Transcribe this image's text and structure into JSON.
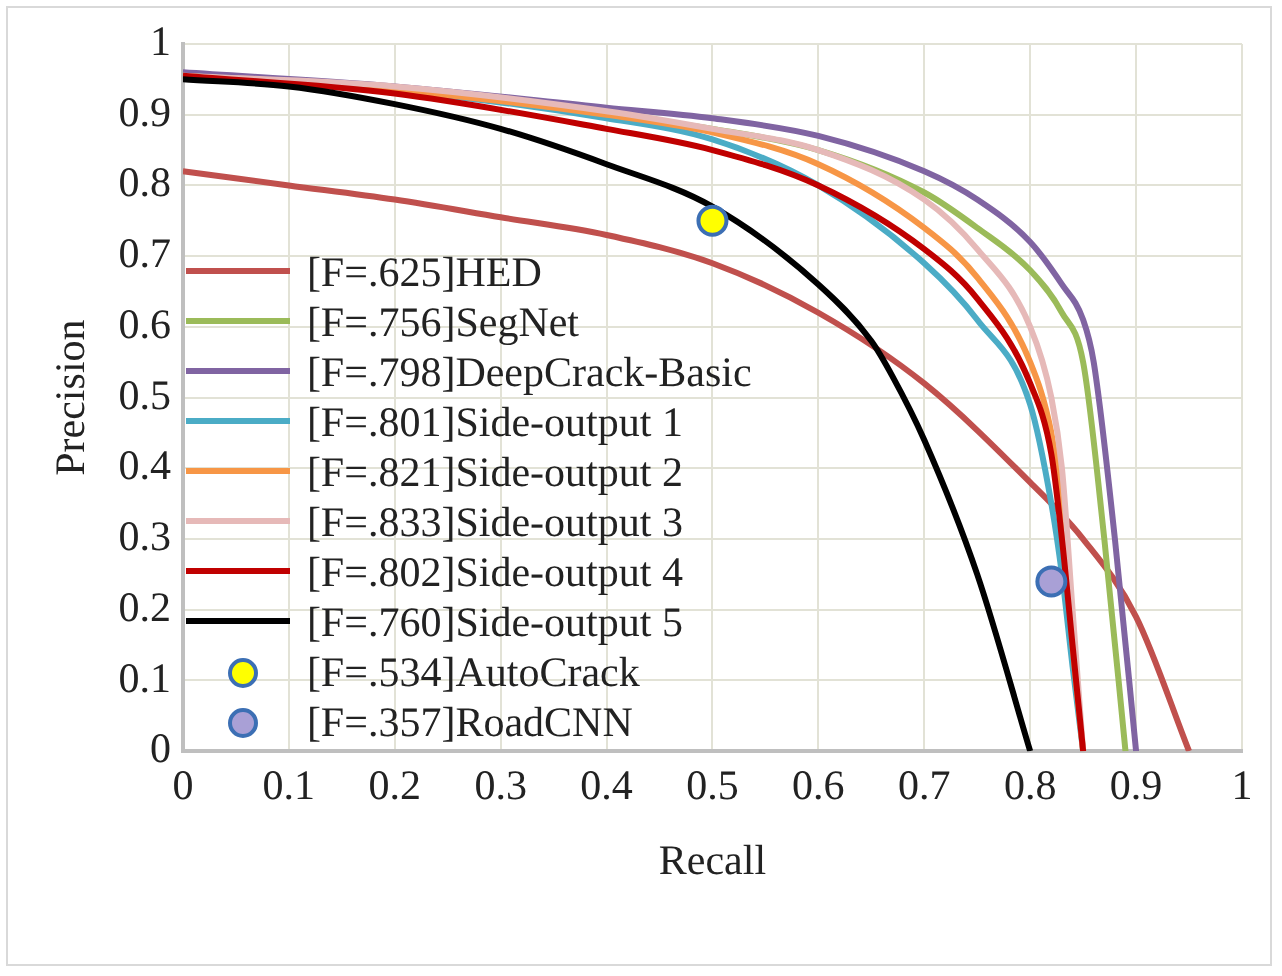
{
  "chart_data": {
    "type": "line",
    "xlabel": "Recall",
    "ylabel": "Precision",
    "xlim": [
      0,
      1
    ],
    "ylim": [
      0,
      1
    ],
    "xticks": [
      0,
      0.1,
      0.2,
      0.3,
      0.4,
      0.5,
      0.6,
      0.7,
      0.8,
      0.9,
      1
    ],
    "yticks": [
      0,
      0.1,
      0.2,
      0.3,
      0.4,
      0.5,
      0.6,
      0.7,
      0.8,
      0.9,
      1
    ],
    "grid": true,
    "legend": "bottom left",
    "line_style": "solid",
    "series": [
      {
        "name": "[F=.625]HED",
        "color": "#c0504d",
        "x": [
          0,
          0.1,
          0.2,
          0.3,
          0.4,
          0.5,
          0.6,
          0.7,
          0.8,
          0.85,
          0.9,
          0.95
        ],
        "values": [
          0.82,
          0.8,
          0.78,
          0.755,
          0.73,
          0.69,
          0.62,
          0.52,
          0.38,
          0.3,
          0.19,
          0
        ]
      },
      {
        "name": "[F=.756]SegNet",
        "color": "#9bbb59",
        "x": [
          0,
          0.2,
          0.4,
          0.5,
          0.6,
          0.7,
          0.75,
          0.8,
          0.83,
          0.85,
          0.87,
          0.89
        ],
        "values": [
          0.955,
          0.935,
          0.9,
          0.88,
          0.85,
          0.79,
          0.74,
          0.68,
          0.62,
          0.55,
          0.3,
          0
        ]
      },
      {
        "name": "[F=.798]DeepCrack-Basic",
        "color": "#8064a2",
        "x": [
          0,
          0.2,
          0.4,
          0.5,
          0.6,
          0.7,
          0.75,
          0.8,
          0.83,
          0.85,
          0.86,
          0.88,
          0.9
        ],
        "values": [
          0.96,
          0.94,
          0.91,
          0.895,
          0.87,
          0.82,
          0.78,
          0.72,
          0.66,
          0.61,
          0.55,
          0.3,
          0
        ]
      },
      {
        "name": "[F=.801]Side-output 1",
        "color": "#4bacc6",
        "x": [
          0,
          0.2,
          0.4,
          0.5,
          0.6,
          0.7,
          0.75,
          0.8,
          0.82,
          0.83,
          0.84,
          0.85
        ],
        "values": [
          0.955,
          0.935,
          0.895,
          0.865,
          0.8,
          0.69,
          0.61,
          0.49,
          0.35,
          0.25,
          0.12,
          0
        ]
      },
      {
        "name": "[F=.821]Side-output 2",
        "color": "#f79646",
        "x": [
          0,
          0.2,
          0.4,
          0.5,
          0.6,
          0.7,
          0.75,
          0.8,
          0.82,
          0.83,
          0.84,
          0.85
        ],
        "values": [
          0.955,
          0.935,
          0.9,
          0.875,
          0.83,
          0.74,
          0.67,
          0.55,
          0.45,
          0.35,
          0.15,
          0
        ]
      },
      {
        "name": "[F=.833]Side-output 3",
        "color": "#e6b9b8",
        "x": [
          0,
          0.2,
          0.4,
          0.5,
          0.6,
          0.7,
          0.75,
          0.8,
          0.82,
          0.83,
          0.84,
          0.85
        ],
        "values": [
          0.955,
          0.94,
          0.905,
          0.88,
          0.85,
          0.78,
          0.71,
          0.6,
          0.5,
          0.4,
          0.2,
          0
        ]
      },
      {
        "name": "[F=.802]Side-output 4",
        "color": "#c00000",
        "x": [
          0,
          0.2,
          0.4,
          0.5,
          0.6,
          0.7,
          0.75,
          0.8,
          0.82,
          0.83,
          0.84,
          0.85
        ],
        "values": [
          0.955,
          0.93,
          0.88,
          0.85,
          0.8,
          0.71,
          0.64,
          0.52,
          0.42,
          0.3,
          0.15,
          0
        ]
      },
      {
        "name": "[F=.760]Side-output 5",
        "color": "#000000",
        "x": [
          0,
          0.1,
          0.2,
          0.3,
          0.4,
          0.5,
          0.6,
          0.65,
          0.67,
          0.7,
          0.75,
          0.8
        ],
        "values": [
          0.95,
          0.94,
          0.915,
          0.88,
          0.83,
          0.77,
          0.66,
          0.58,
          0.53,
          0.44,
          0.25,
          0
        ]
      },
      {
        "name": "[F=.534]AutoCrack",
        "type": "scatter",
        "marker": "circle",
        "color": "#ffff00",
        "x": [
          0.5
        ],
        "values": [
          0.75
        ]
      },
      {
        "name": "[F=.357]RoadCNN",
        "type": "scatter",
        "marker": "circle",
        "color": "#a9a0d6",
        "x": [
          0.82
        ],
        "values": [
          0.24
        ]
      }
    ]
  }
}
